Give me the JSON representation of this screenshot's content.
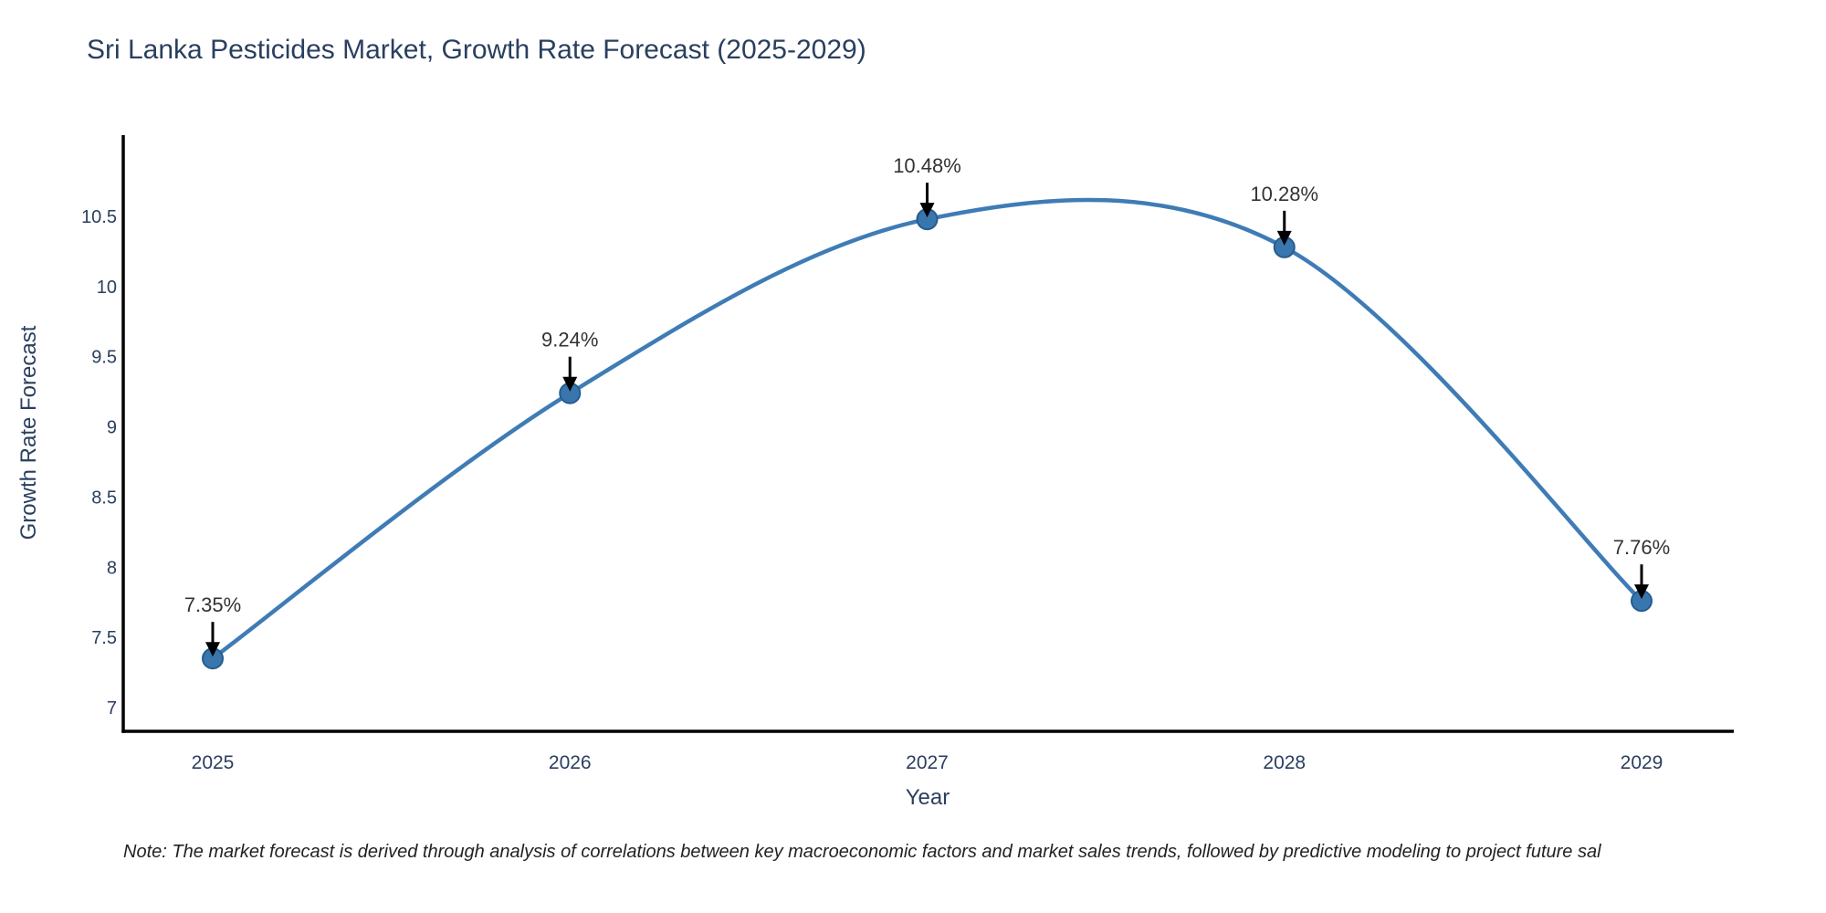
{
  "title": "Sri Lanka Pesticides Market, Growth Rate Forecast (2025-2029)",
  "note": "Note: The market forecast is derived through analysis of correlations between key macroeconomic factors and market sales trends, followed by predictive modeling to project future sal",
  "chart_data": {
    "type": "line",
    "line_shape": "spline",
    "title": "Sri Lanka Pesticides Market, Growth Rate Forecast (2025-2029)",
    "xlabel": "Year",
    "ylabel": "Growth Rate Forecast",
    "categories": [
      "2025",
      "2026",
      "2027",
      "2028",
      "2029"
    ],
    "values": [
      7.35,
      9.24,
      10.48,
      10.28,
      7.76
    ],
    "point_labels": [
      "7.35%",
      "9.24%",
      "10.48%",
      "10.28%",
      "7.76%"
    ],
    "yticks": [
      7,
      7.5,
      8,
      8.5,
      9,
      9.5,
      10,
      10.5
    ],
    "ylim": [
      6.8,
      11.1
    ],
    "grid": false,
    "legend": "none",
    "annotations": "arrow-down-to-each-point",
    "colors": {
      "line": "#3f7cb6",
      "marker_fill": "#3a76ae",
      "marker_edge": "#255d8e",
      "axis_text": "#2a3f5f",
      "annotation_text": "#333333",
      "arrow": "#000000",
      "spine": "#000000",
      "background": "#ffffff"
    }
  }
}
